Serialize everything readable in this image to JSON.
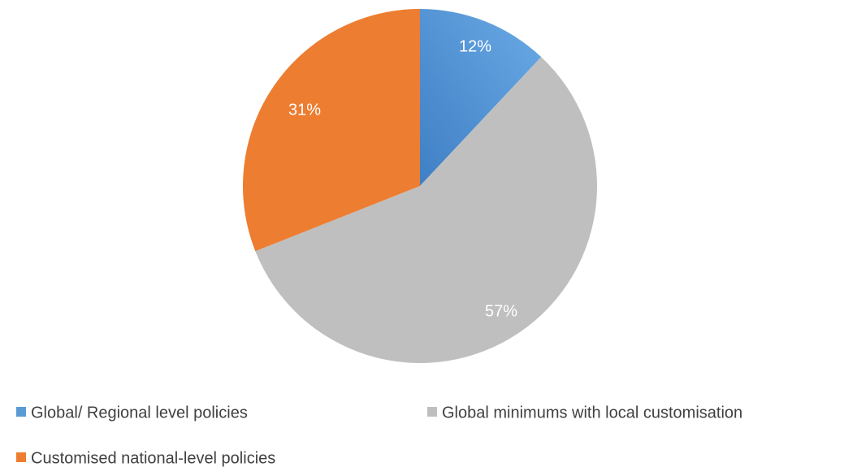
{
  "chart_data": {
    "type": "pie",
    "title": "",
    "categories": [
      "Global/ Regional level policies",
      "Global minimums with local customisation",
      "Customised national-level policies"
    ],
    "values": [
      12,
      57,
      31
    ],
    "data_labels": [
      "12%",
      "57%",
      "31%"
    ],
    "colors": [
      "#5b9bd5",
      "#bfbfbf",
      "#ed7d31"
    ],
    "legend_position": "bottom"
  }
}
